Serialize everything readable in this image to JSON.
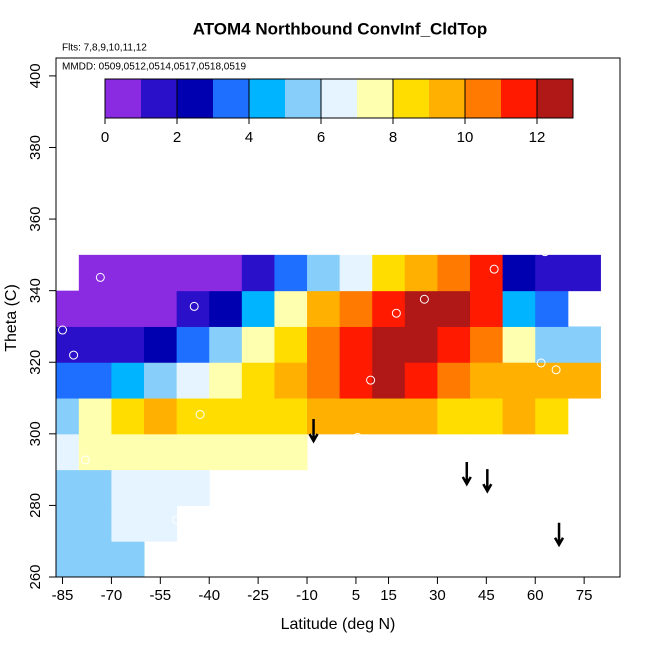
{
  "chart_data": {
    "type": "heatmap",
    "title": "ATOM4 Northbound ConvInf_CldTop",
    "subtitle": "Flts: 7,8,9,10,11,12",
    "annotation": "MMDD: 0509,0512,0514,0517,0518,0519",
    "x_label": "Latitude (deg N)",
    "y_label": "Theta (C)",
    "xlim": [
      -87,
      86
    ],
    "ylim": [
      260,
      405
    ],
    "xticks": [
      -85,
      -70,
      -55,
      -40,
      -25,
      -10,
      5,
      15,
      30,
      45,
      60,
      75
    ],
    "yticks": [
      260,
      280,
      300,
      320,
      340,
      360,
      380,
      400
    ],
    "x": [
      -85,
      -75,
      -65,
      -55,
      -45,
      -35,
      -25,
      -15,
      -5,
      5,
      15,
      25,
      35,
      45,
      55,
      65,
      75
    ],
    "y": [
      265,
      275,
      285,
      295,
      305,
      315,
      325,
      335,
      345
    ],
    "values": [
      [
        5,
        5,
        5.5,
        null,
        null,
        null,
        null,
        null,
        null,
        null,
        null,
        null,
        null,
        null,
        null,
        null,
        null
      ],
      [
        5,
        5.5,
        6,
        6,
        null,
        null,
        null,
        null,
        null,
        null,
        null,
        null,
        null,
        null,
        null,
        null,
        null
      ],
      [
        5,
        5.5,
        6,
        6.5,
        6.5,
        null,
        null,
        null,
        null,
        null,
        null,
        null,
        null,
        null,
        null,
        null,
        null
      ],
      [
        6,
        7,
        7,
        7,
        7,
        7,
        7,
        7,
        null,
        null,
        null,
        null,
        null,
        null,
        null,
        null,
        null
      ],
      [
        5,
        7,
        8,
        9,
        8,
        8,
        8,
        8,
        9,
        9,
        9,
        9,
        8,
        8,
        9,
        8,
        null
      ],
      [
        3,
        3,
        4,
        5,
        6,
        7,
        8,
        9,
        10,
        11,
        12,
        11,
        10,
        9,
        9,
        9,
        9
      ],
      [
        1,
        1,
        1.5,
        2,
        3,
        5,
        7,
        8,
        10,
        11,
        12,
        12,
        11,
        10,
        7,
        5,
        5
      ],
      [
        0.5,
        0.5,
        0.5,
        0.5,
        1,
        2,
        4,
        7,
        9,
        10,
        11,
        12,
        12,
        11,
        4,
        3,
        null
      ],
      [
        null,
        0.5,
        0.5,
        0.5,
        0.5,
        0.5,
        1.5,
        3,
        5,
        6,
        8,
        9,
        10,
        11,
        2,
        1.5,
        1.5
      ]
    ],
    "colorbar": {
      "lim": [
        0,
        13
      ],
      "ticks": [
        0,
        2,
        4,
        6,
        8,
        10,
        12
      ],
      "colors": [
        "#8a2be2",
        "#2a10c8",
        "#0000b0",
        "#1e6fff",
        "#00b4ff",
        "#87cefa",
        "#e6f4ff",
        "#ffffb0",
        "#ffdd00",
        "#ffb000",
        "#ff7a00",
        "#ff1a00",
        "#b01818"
      ]
    },
    "points": {
      "x": [
        -73.4,
        -44.6,
        -85,
        -81.6,
        9.5,
        17.4,
        26,
        47.4,
        63,
        61.8,
        66.4,
        -42.8,
        5.5,
        -78,
        -50
      ],
      "y": [
        343.7,
        335.6,
        329,
        322,
        315,
        333.7,
        337.6,
        346,
        350.9,
        319.8,
        317.9,
        305.4,
        299,
        292.7,
        276
      ]
    },
    "arrows": {
      "x": [
        -8,
        39,
        45.3,
        67.3
      ],
      "y": [
        298,
        286,
        284,
        269
      ]
    }
  }
}
